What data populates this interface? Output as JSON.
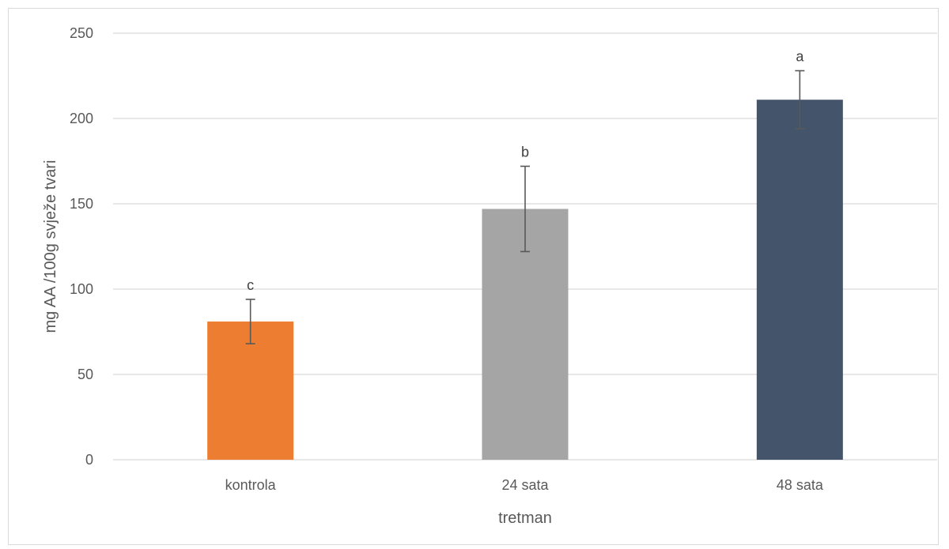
{
  "chart_data": {
    "type": "bar",
    "categories": [
      "kontrola",
      "24 sata",
      "48 sata"
    ],
    "values": [
      81,
      147,
      211
    ],
    "error": [
      13,
      25,
      17
    ],
    "significance": [
      "c",
      "b",
      "a"
    ],
    "colors": [
      "#ED7D31",
      "#A5A5A5",
      "#44546A"
    ],
    "title": "",
    "xlabel": "tretman",
    "ylabel": "mg AA /100g svježe tvari",
    "ylim": [
      0,
      250
    ],
    "yticks": [
      0,
      50,
      100,
      150,
      200,
      250
    ],
    "grid": true,
    "legend": "none"
  }
}
